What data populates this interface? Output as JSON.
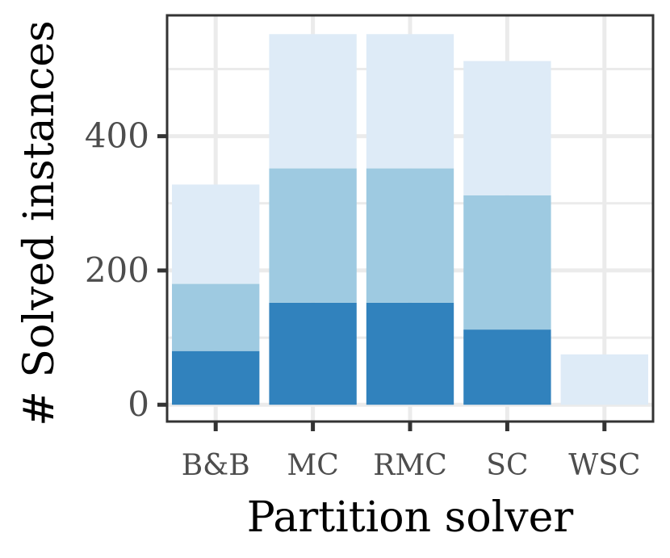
{
  "chart_data": {
    "type": "bar",
    "stacked": true,
    "xlabel": "Partition solver",
    "ylabel": "# Solved instances",
    "categories": [
      "B&B",
      "MC",
      "RMC",
      "SC",
      "WSC"
    ],
    "y_ticks": [
      0,
      200,
      400
    ],
    "ylim": [
      -25,
      580
    ],
    "grid": true,
    "series": [
      {
        "color": "#3182bd",
        "values": [
          80,
          152,
          152,
          112,
          0
        ]
      },
      {
        "color": "#9ecae1",
        "values": [
          100,
          200,
          200,
          200,
          0
        ]
      },
      {
        "color": "#deebf7",
        "values": [
          148,
          200,
          200,
          200,
          75
        ]
      }
    ],
    "colors": {
      "grid": "#ebebeb",
      "axis": "#333333",
      "tick_text": "#4d4d4d"
    }
  }
}
